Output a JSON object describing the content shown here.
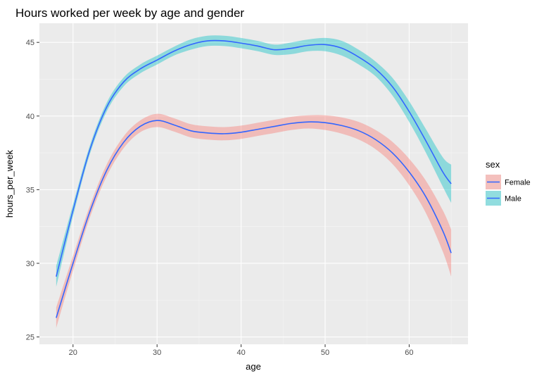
{
  "chart_data": {
    "type": "line",
    "title": "Hours worked per week by age and gender",
    "xlabel": "age",
    "ylabel": "hours_per_week",
    "xlim": [
      16,
      67
    ],
    "ylim": [
      24.5,
      46.3
    ],
    "xticks": [
      20,
      30,
      40,
      50,
      60
    ],
    "yticks": [
      25,
      30,
      35,
      40,
      45
    ],
    "grid": true,
    "legend": {
      "title": "sex",
      "placement": "right"
    },
    "line_color": "#3366ff",
    "panel_color": "#ebebeb",
    "x": [
      18,
      20,
      22,
      24,
      26,
      28,
      30,
      32,
      34,
      36,
      38,
      40,
      42,
      44,
      46,
      48,
      50,
      52,
      54,
      56,
      58,
      60,
      62,
      64,
      65
    ],
    "series": [
      {
        "name": "Female",
        "fill": "#f8766d",
        "values": [
          26.3,
          30.0,
          33.5,
          36.3,
          38.2,
          39.3,
          39.7,
          39.4,
          39.0,
          38.85,
          38.8,
          38.9,
          39.1,
          39.3,
          39.5,
          39.6,
          39.55,
          39.35,
          39.0,
          38.4,
          37.5,
          36.2,
          34.5,
          32.2,
          30.7
        ],
        "lower": [
          25.6,
          29.5,
          33.1,
          35.9,
          37.8,
          38.9,
          39.25,
          38.95,
          38.55,
          38.4,
          38.35,
          38.45,
          38.65,
          38.85,
          39.05,
          39.15,
          39.05,
          38.8,
          38.4,
          37.75,
          36.75,
          35.3,
          33.4,
          30.8,
          29.1
        ],
        "upper": [
          27.0,
          30.5,
          33.9,
          36.7,
          38.6,
          39.7,
          40.15,
          39.85,
          39.45,
          39.3,
          39.25,
          39.35,
          39.55,
          39.75,
          39.95,
          40.05,
          40.05,
          39.9,
          39.6,
          39.05,
          38.25,
          37.1,
          35.6,
          33.6,
          32.3
        ]
      },
      {
        "name": "Male",
        "fill": "#00bfc4",
        "values": [
          29.1,
          33.6,
          37.7,
          40.6,
          42.3,
          43.2,
          43.8,
          44.4,
          44.85,
          45.1,
          45.1,
          44.95,
          44.75,
          44.5,
          44.6,
          44.8,
          44.85,
          44.6,
          44.0,
          43.2,
          42.0,
          40.3,
          38.3,
          36.2,
          35.4
        ],
        "lower": [
          28.4,
          33.2,
          37.4,
          40.3,
          42.0,
          42.9,
          43.5,
          44.1,
          44.5,
          44.75,
          44.75,
          44.6,
          44.4,
          44.15,
          44.2,
          44.4,
          44.4,
          44.1,
          43.5,
          42.7,
          41.4,
          39.6,
          37.5,
          35.2,
          34.1
        ],
        "upper": [
          29.8,
          34.0,
          38.0,
          40.9,
          42.6,
          43.5,
          44.1,
          44.7,
          45.2,
          45.45,
          45.45,
          45.3,
          45.1,
          44.85,
          45.0,
          45.2,
          45.3,
          45.1,
          44.5,
          43.7,
          42.6,
          41.0,
          39.1,
          37.2,
          36.7
        ]
      }
    ]
  }
}
